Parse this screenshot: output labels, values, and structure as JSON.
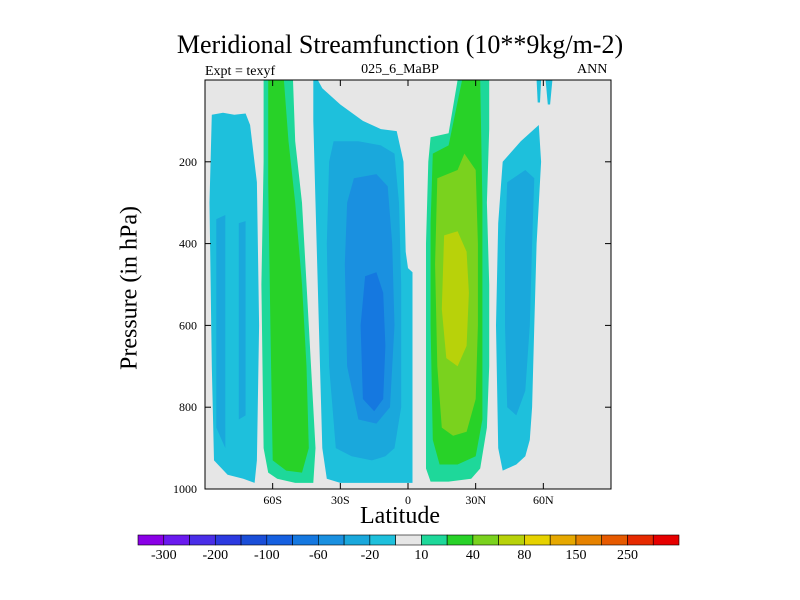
{
  "title": "Meridional Streamfunction (10**9kg/m-2)",
  "left_label": "Expt = texyf",
  "center_label": "025_6_MaBP",
  "right_label": "ANN",
  "chart_data": {
    "type": "heatmap",
    "variant": "filled-contour",
    "xlabel": "Latitude",
    "ylabel": "Pressure (in hPa)",
    "x_range": [
      -90,
      90
    ],
    "y_range": [
      1000,
      0
    ],
    "y_reversed": true,
    "x_ticks": [
      {
        "value": -60,
        "label": "60S"
      },
      {
        "value": -30,
        "label": "30S"
      },
      {
        "value": 0,
        "label": "0"
      },
      {
        "value": 30,
        "label": "30N"
      },
      {
        "value": 60,
        "label": "60N"
      }
    ],
    "y_ticks": [
      {
        "value": 200,
        "label": "200"
      },
      {
        "value": 400,
        "label": "400"
      },
      {
        "value": 600,
        "label": "600"
      },
      {
        "value": 800,
        "label": "800"
      },
      {
        "value": 1000,
        "label": "1000"
      }
    ],
    "background_color": "#e6e6e6",
    "contour_levels": [
      -300,
      -250,
      -200,
      -150,
      -100,
      -80,
      -60,
      -40,
      -20,
      -10,
      10,
      20,
      40,
      60,
      80,
      100,
      150,
      200,
      250,
      300
    ],
    "colorbar_colors": [
      "#8a00e6",
      "#6a1aef",
      "#4a2ee8",
      "#2c3ae0",
      "#1a4ed8",
      "#1660e0",
      "#1578e0",
      "#1a90e0",
      "#1aa8dc",
      "#1ec0dc",
      "#e6e6e6",
      "#1ed89a",
      "#28d228",
      "#7ad21e",
      "#b8d20a",
      "#e6d200",
      "#e6a800",
      "#e68200",
      "#e65a00",
      "#e62a00",
      "#e60000"
    ],
    "colorbar_labels": [
      "-300",
      "-200",
      "-100",
      "-60",
      "-20",
      "10",
      "40",
      "80",
      "150",
      "250"
    ],
    "cells": [
      {
        "region": "high-latitude southern cell",
        "lat_range": [
          -87,
          -66
        ],
        "p_range": [
          80,
          985
        ],
        "levels": [
          {
            "color": "#1ec0dc",
            "path": [
              [
                -87,
                85
              ],
              [
                -82,
                80
              ],
              [
                -77,
                85
              ],
              [
                -72,
                82
              ],
              [
                -70,
                110
              ],
              [
                -67,
                250
              ],
              [
                -66,
                600
              ],
              [
                -67,
                930
              ],
              [
                -68,
                985
              ],
              [
                -73,
                975
              ],
              [
                -80,
                965
              ],
              [
                -86,
                930
              ],
              [
                -87,
                700
              ],
              [
                -88,
                300
              ]
            ]
          },
          {
            "color": "#1aa8dc",
            "path": [
              [
                -85,
                340
              ],
              [
                -81,
                330
              ],
              [
                -81,
                900
              ],
              [
                -85,
                850
              ]
            ]
          },
          {
            "color": "#1aa8dc",
            "path": [
              [
                -75,
                350
              ],
              [
                -72,
                345
              ],
              [
                -72,
                820
              ],
              [
                -75,
                830
              ]
            ]
          }
        ]
      },
      {
        "region": "southern Ferrel-type cell",
        "lat_range": [
          -65,
          -41
        ],
        "p_range": [
          0,
          985
        ],
        "levels": [
          {
            "color": "#1ed89a",
            "path": [
              [
                -64,
                0
              ],
              [
                -61,
                0
              ],
              [
                -61,
                20
              ],
              [
                -55,
                0
              ],
              [
                -51,
                0
              ],
              [
                -50,
                150
              ],
              [
                -47,
                300
              ],
              [
                -44,
                600
              ],
              [
                -41,
                900
              ],
              [
                -42,
                985
              ],
              [
                -50,
                985
              ],
              [
                -58,
                975
              ],
              [
                -62,
                960
              ],
              [
                -64,
                900
              ],
              [
                -65,
                500
              ],
              [
                -64,
                200
              ]
            ]
          },
          {
            "color": "#28d228",
            "path": [
              [
                -62,
                0
              ],
              [
                -55,
                0
              ],
              [
                -53,
                150
              ],
              [
                -50,
                300
              ],
              [
                -47,
                500
              ],
              [
                -45,
                700
              ],
              [
                -44,
                900
              ],
              [
                -47,
                960
              ],
              [
                -54,
                955
              ],
              [
                -60,
                930
              ],
              [
                -61,
                600
              ],
              [
                -62,
                250
              ]
            ]
          }
        ]
      },
      {
        "region": "southern Hadley cell",
        "lat_range": [
          -40,
          2
        ],
        "p_range": [
          100,
          985
        ],
        "levels": [
          {
            "color": "#1ec0dc",
            "path": [
              [
                -40,
                0
              ],
              [
                -38,
                20
              ],
              [
                -30,
                60
              ],
              [
                -20,
                100
              ],
              [
                -12,
                120
              ],
              [
                -5,
                125
              ],
              [
                -2,
                200
              ],
              [
                -1,
                420
              ],
              [
                0,
                460
              ],
              [
                2,
                470
              ],
              [
                2,
                985
              ],
              [
                -8,
                985
              ],
              [
                -20,
                985
              ],
              [
                -30,
                985
              ],
              [
                -36,
                975
              ],
              [
                -38,
                900
              ],
              [
                -39,
                700
              ],
              [
                -41,
                300
              ],
              [
                -42,
                100
              ],
              [
                -42,
                0
              ]
            ]
          },
          {
            "color": "#1aa8dc",
            "path": [
              [
                -33,
                150
              ],
              [
                -22,
                150
              ],
              [
                -12,
                160
              ],
              [
                -6,
                180
              ],
              [
                -4,
                300
              ],
              [
                -3,
                500
              ],
              [
                -3,
                800
              ],
              [
                -6,
                900
              ],
              [
                -10,
                920
              ],
              [
                -16,
                930
              ],
              [
                -25,
                920
              ],
              [
                -32,
                900
              ],
              [
                -35,
                700
              ],
              [
                -36,
                400
              ],
              [
                -35,
                200
              ]
            ]
          },
          {
            "color": "#1a90e0",
            "path": [
              [
                -24,
                240
              ],
              [
                -14,
                230
              ],
              [
                -9,
                260
              ],
              [
                -7,
                400
              ],
              [
                -6,
                600
              ],
              [
                -8,
                800
              ],
              [
                -14,
                840
              ],
              [
                -22,
                830
              ],
              [
                -27,
                700
              ],
              [
                -28,
                450
              ],
              [
                -27,
                300
              ]
            ]
          },
          {
            "color": "#1578e0",
            "path": [
              [
                -19,
                480
              ],
              [
                -14,
                470
              ],
              [
                -11,
                520
              ],
              [
                -10,
                650
              ],
              [
                -11,
                780
              ],
              [
                -15,
                810
              ],
              [
                -20,
                780
              ],
              [
                -21,
                600
              ]
            ]
          }
        ]
      },
      {
        "region": "northern Hadley cell",
        "lat_range": [
          8,
          37
        ],
        "p_range": [
          0,
          985
        ],
        "levels": [
          {
            "color": "#1ed89a",
            "path": [
              [
                10,
                140
              ],
              [
                18,
                130
              ],
              [
                22,
                0
              ],
              [
                36,
                0
              ],
              [
                36,
                120
              ],
              [
                35,
                300
              ],
              [
                36,
                500
              ],
              [
                36,
                700
              ],
              [
                35,
                850
              ],
              [
                32,
                950
              ],
              [
                28,
                975
              ],
              [
                18,
                982
              ],
              [
                10,
                982
              ],
              [
                8,
                950
              ],
              [
                8,
                700
              ],
              [
                8,
                400
              ],
              [
                9,
                200
              ]
            ]
          },
          {
            "color": "#28d228",
            "path": [
              [
                11,
                180
              ],
              [
                18,
                160
              ],
              [
                24,
                0
              ],
              [
                32,
                0
              ],
              [
                33,
                300
              ],
              [
                33,
                600
              ],
              [
                33,
                830
              ],
              [
                30,
                920
              ],
              [
                22,
                940
              ],
              [
                14,
                940
              ],
              [
                11,
                880
              ],
              [
                10,
                600
              ],
              [
                10,
                350
              ]
            ]
          },
          {
            "color": "#7ad21e",
            "path": [
              [
                13,
                240
              ],
              [
                22,
                220
              ],
              [
                25,
                180
              ],
              [
                30,
                220
              ],
              [
                31,
                400
              ],
              [
                31,
                600
              ],
              [
                30,
                780
              ],
              [
                26,
                860
              ],
              [
                20,
                870
              ],
              [
                15,
                850
              ],
              [
                13,
                700
              ],
              [
                12,
                450
              ]
            ]
          },
          {
            "color": "#b8d20a",
            "path": [
              [
                16,
                380
              ],
              [
                22,
                370
              ],
              [
                26,
                420
              ],
              [
                27,
                520
              ],
              [
                26,
                650
              ],
              [
                22,
                700
              ],
              [
                17,
                680
              ],
              [
                15,
                560
              ]
            ]
          }
        ]
      },
      {
        "region": "northern Ferrel-type cell",
        "lat_range": [
          40,
          64
        ],
        "p_range": [
          100,
          955
        ],
        "levels": [
          {
            "color": "#1ec0dc",
            "path": [
              [
                42,
                200
              ],
              [
                50,
                150
              ],
              [
                58,
                110
              ],
              [
                59,
                200
              ],
              [
                57,
                400
              ],
              [
                56,
                600
              ],
              [
                55,
                800
              ],
              [
                54,
                880
              ],
              [
                52,
                920
              ],
              [
                48,
                940
              ],
              [
                42,
                955
              ],
              [
                40,
                900
              ],
              [
                39,
                600
              ],
              [
                40,
                350
              ]
            ]
          },
          {
            "color": "#1aa8dc",
            "path": [
              [
                44,
                250
              ],
              [
                52,
                220
              ],
              [
                56,
                240
              ],
              [
                55,
                400
              ],
              [
                54,
                600
              ],
              [
                52,
                760
              ],
              [
                48,
                820
              ],
              [
                44,
                800
              ],
              [
                43,
                600
              ],
              [
                43,
                400
              ]
            ]
          }
        ]
      },
      {
        "region": "upper-level northern features",
        "lat_range": [
          55,
          70
        ],
        "p_range": [
          0,
          80
        ],
        "levels": [
          {
            "color": "#1ec0dc",
            "path": [
              [
                57,
                0
              ],
              [
                59,
                0
              ],
              [
                58.5,
                55
              ],
              [
                57.5,
                55
              ]
            ]
          },
          {
            "color": "#1ec0dc",
            "path": [
              [
                61,
                0
              ],
              [
                64,
                0
              ],
              [
                63,
                60
              ],
              [
                62,
                60
              ]
            ]
          }
        ]
      }
    ]
  }
}
